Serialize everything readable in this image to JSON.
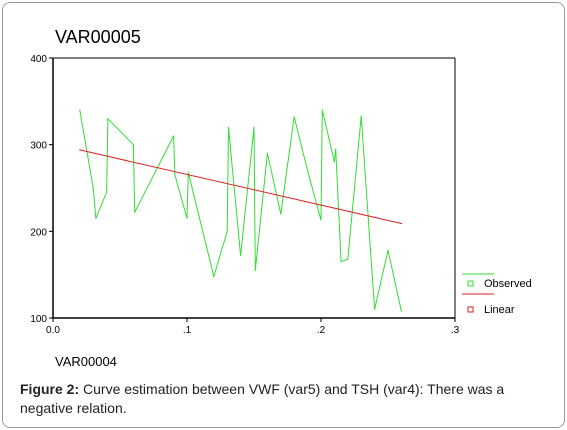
{
  "chart_data": {
    "type": "line",
    "title": "VAR00005",
    "xlabel": "VAR00004",
    "ylabel": "",
    "xlim": [
      0.0,
      0.3
    ],
    "ylim": [
      100,
      400
    ],
    "x_ticks": [
      0.0,
      0.1,
      0.2,
      0.3
    ],
    "x_tick_labels": [
      "0.0",
      ".1",
      ".2",
      ".3"
    ],
    "y_ticks": [
      100,
      200,
      300,
      400
    ],
    "y_tick_labels": [
      "100",
      "200",
      "300",
      "400"
    ],
    "legend_position": "right",
    "series": [
      {
        "name": "Observed",
        "color": "#33dd33",
        "x": [
          0.02,
          0.03,
          0.032,
          0.04,
          0.041,
          0.06,
          0.061,
          0.09,
          0.091,
          0.1,
          0.101,
          0.12,
          0.13,
          0.131,
          0.14,
          0.15,
          0.151,
          0.16,
          0.17,
          0.18,
          0.19,
          0.2,
          0.201,
          0.21,
          0.211,
          0.215,
          0.22,
          0.23,
          0.24,
          0.25,
          0.26
        ],
        "values": [
          340,
          250,
          215,
          245,
          330,
          300,
          222,
          310,
          265,
          215,
          268,
          148,
          200,
          320,
          172,
          320,
          155,
          290,
          220,
          332,
          270,
          213,
          340,
          280,
          295,
          165,
          168,
          333,
          110,
          178,
          108
        ]
      },
      {
        "name": "Linear",
        "color": "#dd2222",
        "x": [
          0.02,
          0.26
        ],
        "values": [
          294,
          209
        ]
      }
    ]
  },
  "caption": {
    "label": "Figure 2:",
    "text": " Curve estimation between VWF (var5) and TSH (var4): There was a negative relation."
  }
}
